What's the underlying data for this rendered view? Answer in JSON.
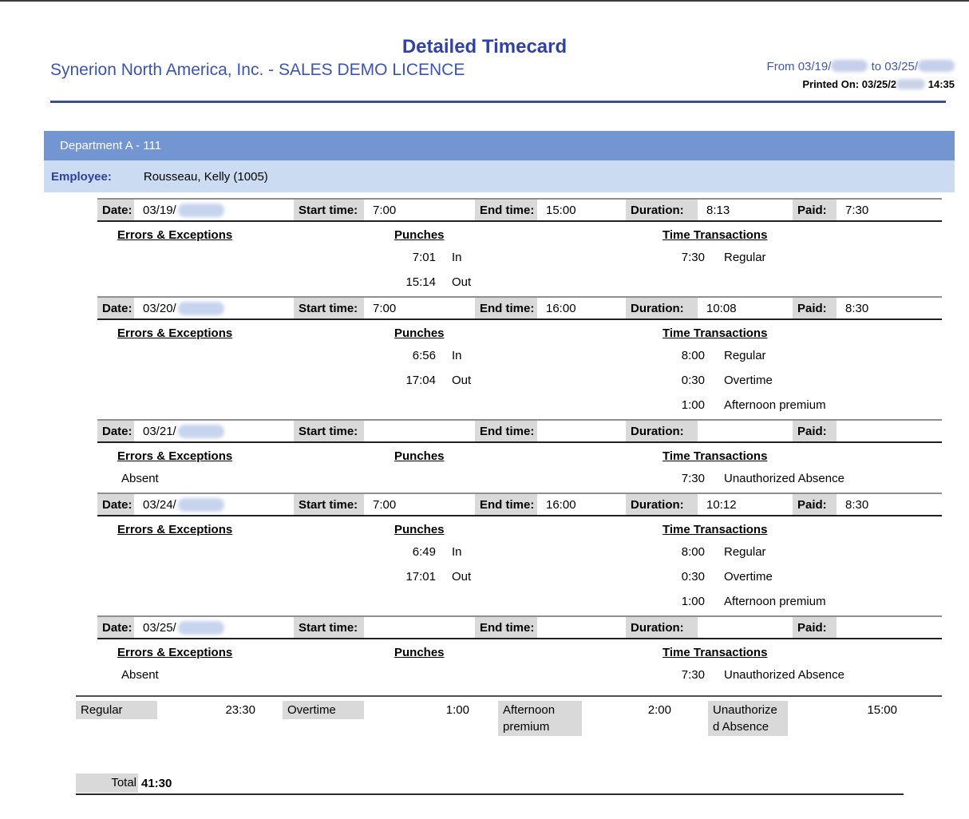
{
  "report": {
    "title": "Detailed Timecard",
    "company": "Synerion North America, Inc. - SALES DEMO LICENCE",
    "date_range": {
      "from_label": "From",
      "from_date": "03/19/",
      "to_label": "to",
      "to_date": "03/25/",
      "year_redacted": true
    },
    "printed_on_label": "Printed On:",
    "printed_on_date": "03/25/2",
    "printed_on_time": "14:35"
  },
  "department": {
    "name": "Department A - 111"
  },
  "employee": {
    "label": "Employee:",
    "name": "Rousseau, Kelly (1005)"
  },
  "field_labels": {
    "date": "Date:",
    "start": "Start time:",
    "end": "End time:",
    "duration": "Duration:",
    "paid": "Paid:"
  },
  "section_headers": {
    "errors": "Errors & Exceptions",
    "punches": "Punches",
    "transactions": "Time Transactions"
  },
  "days": [
    {
      "date": "03/19/",
      "start": "7:00",
      "end": "15:00",
      "duration": "8:13",
      "paid": "7:30",
      "errors": [],
      "punches": [
        {
          "time": "7:01",
          "dir": "In"
        },
        {
          "time": "15:14",
          "dir": "Out"
        }
      ],
      "transactions": [
        {
          "hours": "7:30",
          "name": "Regular"
        }
      ]
    },
    {
      "date": "03/20/",
      "start": "7:00",
      "end": "16:00",
      "duration": "10:08",
      "paid": "8:30",
      "errors": [],
      "punches": [
        {
          "time": "6:56",
          "dir": "In"
        },
        {
          "time": "17:04",
          "dir": "Out"
        }
      ],
      "transactions": [
        {
          "hours": "8:00",
          "name": "Regular"
        },
        {
          "hours": "0:30",
          "name": "Overtime"
        },
        {
          "hours": "1:00",
          "name": "Afternoon premium"
        }
      ]
    },
    {
      "date": "03/21/",
      "start": "",
      "end": "",
      "duration": "",
      "paid": "",
      "errors": [
        "Absent"
      ],
      "punches": [],
      "transactions": [
        {
          "hours": "7:30",
          "name": "Unauthorized Absence"
        }
      ]
    },
    {
      "date": "03/24/",
      "start": "7:00",
      "end": "16:00",
      "duration": "10:12",
      "paid": "8:30",
      "errors": [],
      "punches": [
        {
          "time": "6:49",
          "dir": "In"
        },
        {
          "time": "17:01",
          "dir": "Out"
        }
      ],
      "transactions": [
        {
          "hours": "8:00",
          "name": "Regular"
        },
        {
          "hours": "0:30",
          "name": "Overtime"
        },
        {
          "hours": "1:00",
          "name": "Afternoon premium"
        }
      ]
    },
    {
      "date": "03/25/",
      "start": "",
      "end": "",
      "duration": "",
      "paid": "",
      "errors": [
        "Absent"
      ],
      "punches": [],
      "transactions": [
        {
          "hours": "7:30",
          "name": "Unauthorized Absence"
        }
      ]
    }
  ],
  "summary": {
    "items": [
      {
        "name": "Regular",
        "value": "23:30"
      },
      {
        "name": "Overtime",
        "value": "1:00"
      },
      {
        "name": "Afternoon premium",
        "value": "2:00"
      },
      {
        "name": "Unauthorized Absence",
        "value": "15:00"
      }
    ],
    "total_label": "Total",
    "total_value": "41:30"
  },
  "colors": {
    "title_blue": "#3143a1",
    "company_blue": "#3d55a9",
    "department_bar": "#7396d3",
    "employee_bar": "#cbdcf2",
    "label_chip_gray": "#d9d9d9",
    "rule_navy": "#3d4d8e",
    "redaction_blue": "#c7d4ee"
  }
}
